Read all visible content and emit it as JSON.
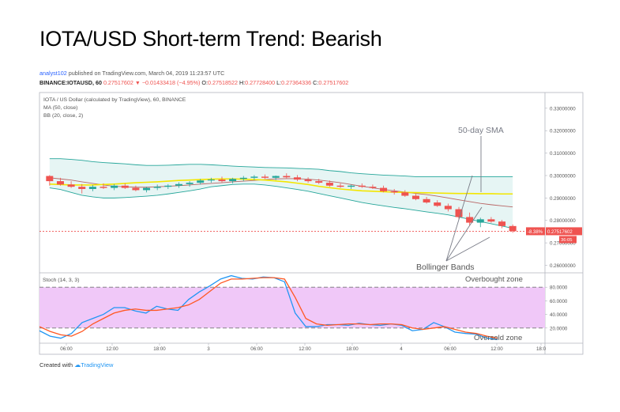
{
  "title": "IOTA/USD Short-term Trend: Bearish",
  "publish": {
    "author": "analyst102",
    "text": " published on TradingView.com, March 04, 2019 11:23:57 UTC"
  },
  "ohlc": {
    "symbol": "BINANCE:IOTAUSD, 60",
    "last": "0.27517602",
    "change": "−0.01433418 (−4.95%)",
    "o_label": "O:",
    "o": "0.27518522",
    "h_label": "H:",
    "h": "0.27728400",
    "l_label": "L:",
    "l": "0.27364336",
    "c_label": "C:",
    "c": "0.27517602"
  },
  "footer": {
    "prefix": "Created with",
    "brand": "TradingView"
  },
  "colors": {
    "up": "#26a69a",
    "down": "#ef5350",
    "ma": "#f3e600",
    "bb_fill": "#e0f2f1",
    "bb_line": "#26a69a",
    "bb_basis": "#a52a2a",
    "stoch_fill": "#f0c8f8",
    "k": "#2196f3",
    "d": "#ff5722",
    "price_line": "#ef5350"
  },
  "chart_data": [
    {
      "type": "candlestick",
      "legend": [
        "IOTA / US Dollar (calculated by TradingView), 60, BINANCE",
        "MA (50, close)",
        "BB (20, close, 2)"
      ],
      "ylim": [
        0.257,
        0.337
      ],
      "yticks": [
        "0.33000000",
        "0.32000000",
        "0.31000000",
        "0.30000000",
        "0.29000000",
        "0.28000000",
        "0.27000000",
        "0.26000000"
      ],
      "ytick_values": [
        0.33,
        0.32,
        0.31,
        0.3,
        0.29,
        0.28,
        0.27,
        0.26
      ],
      "last_price": 0.27517602,
      "last_price_label": "0.27517602",
      "change_label": "-8.38%",
      "countdown": "36:05",
      "candles": [
        [
          0.2998,
          0.3002,
          0.2955,
          0.2975
        ],
        [
          0.2975,
          0.299,
          0.2955,
          0.296
        ],
        [
          0.296,
          0.2975,
          0.2945,
          0.295
        ],
        [
          0.295,
          0.2962,
          0.292,
          0.294
        ],
        [
          0.294,
          0.2958,
          0.293,
          0.295
        ],
        [
          0.295,
          0.2965,
          0.294,
          0.2945
        ],
        [
          0.2945,
          0.2962,
          0.2935,
          0.2955
        ],
        [
          0.2955,
          0.2965,
          0.294,
          0.2945
        ],
        [
          0.2945,
          0.2955,
          0.293,
          0.2935
        ],
        [
          0.2935,
          0.295,
          0.2925,
          0.2945
        ],
        [
          0.2945,
          0.296,
          0.2935,
          0.295
        ],
        [
          0.295,
          0.2962,
          0.294,
          0.2955
        ],
        [
          0.2955,
          0.297,
          0.2945,
          0.2962
        ],
        [
          0.2962,
          0.2975,
          0.295,
          0.2968
        ],
        [
          0.2968,
          0.2985,
          0.296,
          0.2978
        ],
        [
          0.2978,
          0.299,
          0.2968,
          0.2982
        ],
        [
          0.2982,
          0.2995,
          0.297,
          0.2975
        ],
        [
          0.2975,
          0.299,
          0.2965,
          0.2985
        ],
        [
          0.2985,
          0.2998,
          0.2975,
          0.299
        ],
        [
          0.299,
          0.3002,
          0.298,
          0.2995
        ],
        [
          0.2995,
          0.3005,
          0.2985,
          0.299
        ],
        [
          0.299,
          0.3,
          0.298,
          0.2998
        ],
        [
          0.2998,
          0.301,
          0.2988,
          0.2992
        ],
        [
          0.2992,
          0.3002,
          0.2975,
          0.2982
        ],
        [
          0.2982,
          0.2992,
          0.2968,
          0.2975
        ],
        [
          0.2975,
          0.2985,
          0.2962,
          0.2968
        ],
        [
          0.2968,
          0.2978,
          0.295,
          0.2955
        ],
        [
          0.2955,
          0.2965,
          0.2945,
          0.295
        ],
        [
          0.295,
          0.296,
          0.294,
          0.2955
        ],
        [
          0.2955,
          0.2965,
          0.2945,
          0.295
        ],
        [
          0.295,
          0.296,
          0.294,
          0.2945
        ],
        [
          0.2945,
          0.2955,
          0.2925,
          0.293
        ],
        [
          0.293,
          0.294,
          0.2915,
          0.2925
        ],
        [
          0.2925,
          0.2935,
          0.2905,
          0.291
        ],
        [
          0.291,
          0.292,
          0.289,
          0.2895
        ],
        [
          0.2895,
          0.2905,
          0.2875,
          0.288
        ],
        [
          0.288,
          0.289,
          0.286,
          0.2865
        ],
        [
          0.2865,
          0.2875,
          0.284,
          0.285
        ],
        [
          0.285,
          0.286,
          0.2805,
          0.2815
        ],
        [
          0.2815,
          0.2835,
          0.2778,
          0.279
        ],
        [
          0.279,
          0.2812,
          0.277,
          0.2805
        ],
        [
          0.2805,
          0.2815,
          0.279,
          0.2795
        ],
        [
          0.2795,
          0.2802,
          0.2765,
          0.2775
        ],
        [
          0.2775,
          0.2782,
          0.2745,
          0.2752
        ]
      ],
      "ma_50": [
        0.2962,
        0.296,
        0.2958,
        0.2958,
        0.2958,
        0.296,
        0.2962,
        0.2965,
        0.2968,
        0.297,
        0.2972,
        0.2975,
        0.2978,
        0.298,
        0.2982,
        0.2984,
        0.2985,
        0.2985,
        0.2984,
        0.2982,
        0.298,
        0.2976,
        0.2972,
        0.2966,
        0.296,
        0.2952,
        0.2946,
        0.294,
        0.2936,
        0.2932,
        0.293,
        0.2928,
        0.2926,
        0.2925,
        0.2924,
        0.2923,
        0.2922,
        0.2921,
        0.292,
        0.292,
        0.2919,
        0.2919,
        0.2918,
        0.2918
      ],
      "bb_upper": [
        0.3075,
        0.3075,
        0.3072,
        0.3068,
        0.3062,
        0.3058,
        0.3055,
        0.3052,
        0.3048,
        0.3045,
        0.3045,
        0.3046,
        0.3048,
        0.305,
        0.305,
        0.3048,
        0.3045,
        0.3042,
        0.304,
        0.3038,
        0.3036,
        0.3035,
        0.3034,
        0.3032,
        0.303,
        0.3028,
        0.3022,
        0.3018,
        0.3012,
        0.3008,
        0.3005,
        0.3002,
        0.3,
        0.2998,
        0.2995,
        0.2995,
        0.2995,
        0.2995,
        0.2995,
        0.2995,
        0.2995,
        0.2995,
        0.2995,
        0.2995
      ],
      "bb_basis": [
        0.299,
        0.2985,
        0.298,
        0.2972,
        0.2965,
        0.2958,
        0.2952,
        0.295,
        0.2948,
        0.2948,
        0.295,
        0.2952,
        0.2955,
        0.2958,
        0.2962,
        0.2965,
        0.2968,
        0.2972,
        0.2975,
        0.2978,
        0.2982,
        0.2985,
        0.2986,
        0.2986,
        0.2984,
        0.298,
        0.2974,
        0.2968,
        0.296,
        0.2952,
        0.2945,
        0.2938,
        0.2932,
        0.2926,
        0.292,
        0.2915,
        0.2908,
        0.29,
        0.2892,
        0.2884,
        0.2876,
        0.287,
        0.2865,
        0.286
      ],
      "bb_lower": [
        0.2945,
        0.2938,
        0.2925,
        0.2912,
        0.2905,
        0.29,
        0.29,
        0.2902,
        0.2905,
        0.2908,
        0.2912,
        0.2918,
        0.2925,
        0.2932,
        0.294,
        0.295,
        0.2955,
        0.296,
        0.2962,
        0.2962,
        0.2958,
        0.2952,
        0.2945,
        0.2938,
        0.293,
        0.292,
        0.291,
        0.29,
        0.289,
        0.288,
        0.2872,
        0.2865,
        0.2858,
        0.2852,
        0.2845,
        0.2838,
        0.2832,
        0.2825,
        0.2815,
        0.2805,
        0.2795,
        0.2785,
        0.2775,
        0.2765
      ],
      "annotations": {
        "sma_label": "50-day SMA",
        "bb_label": "Bollinger Bands",
        "overbought_label": "Overbought zone",
        "oversold_label": "Oversold zone"
      }
    },
    {
      "type": "line",
      "legend": "Stoch (14, 3, 3)",
      "ylim": [
        0,
        100
      ],
      "yticks": [
        "80.0000",
        "60.0000",
        "40.0000",
        "20.0000"
      ],
      "ytick_values": [
        80,
        60,
        40,
        20
      ],
      "band": [
        20,
        80
      ],
      "series": [
        {
          "key": "k",
          "values": [
            16,
            8,
            5,
            12,
            28,
            34,
            40,
            50,
            50,
            45,
            42,
            52,
            48,
            46,
            62,
            73,
            82,
            92,
            97,
            93,
            92,
            95,
            94,
            88,
            42,
            22,
            22,
            25,
            25,
            24,
            27,
            25,
            24,
            26,
            24,
            16,
            18,
            28,
            22,
            14,
            12,
            11,
            5,
            3
          ]
        },
        {
          "key": "d",
          "values": [
            22,
            15,
            10,
            8,
            15,
            26,
            34,
            42,
            46,
            48,
            46,
            46,
            48,
            50,
            54,
            62,
            74,
            86,
            92,
            92,
            93,
            94,
            94,
            92,
            65,
            34,
            26,
            24,
            25,
            26,
            26,
            25,
            26,
            26,
            25,
            20,
            18,
            20,
            22,
            18,
            14,
            12,
            8,
            5
          ]
        }
      ]
    }
  ],
  "xaxis": {
    "labels": [
      "06:00",
      "12:00",
      "18:00",
      "3",
      "06:00",
      "12:00",
      "18:00",
      "4",
      "06:00",
      "12:00",
      "18:0"
    ]
  }
}
